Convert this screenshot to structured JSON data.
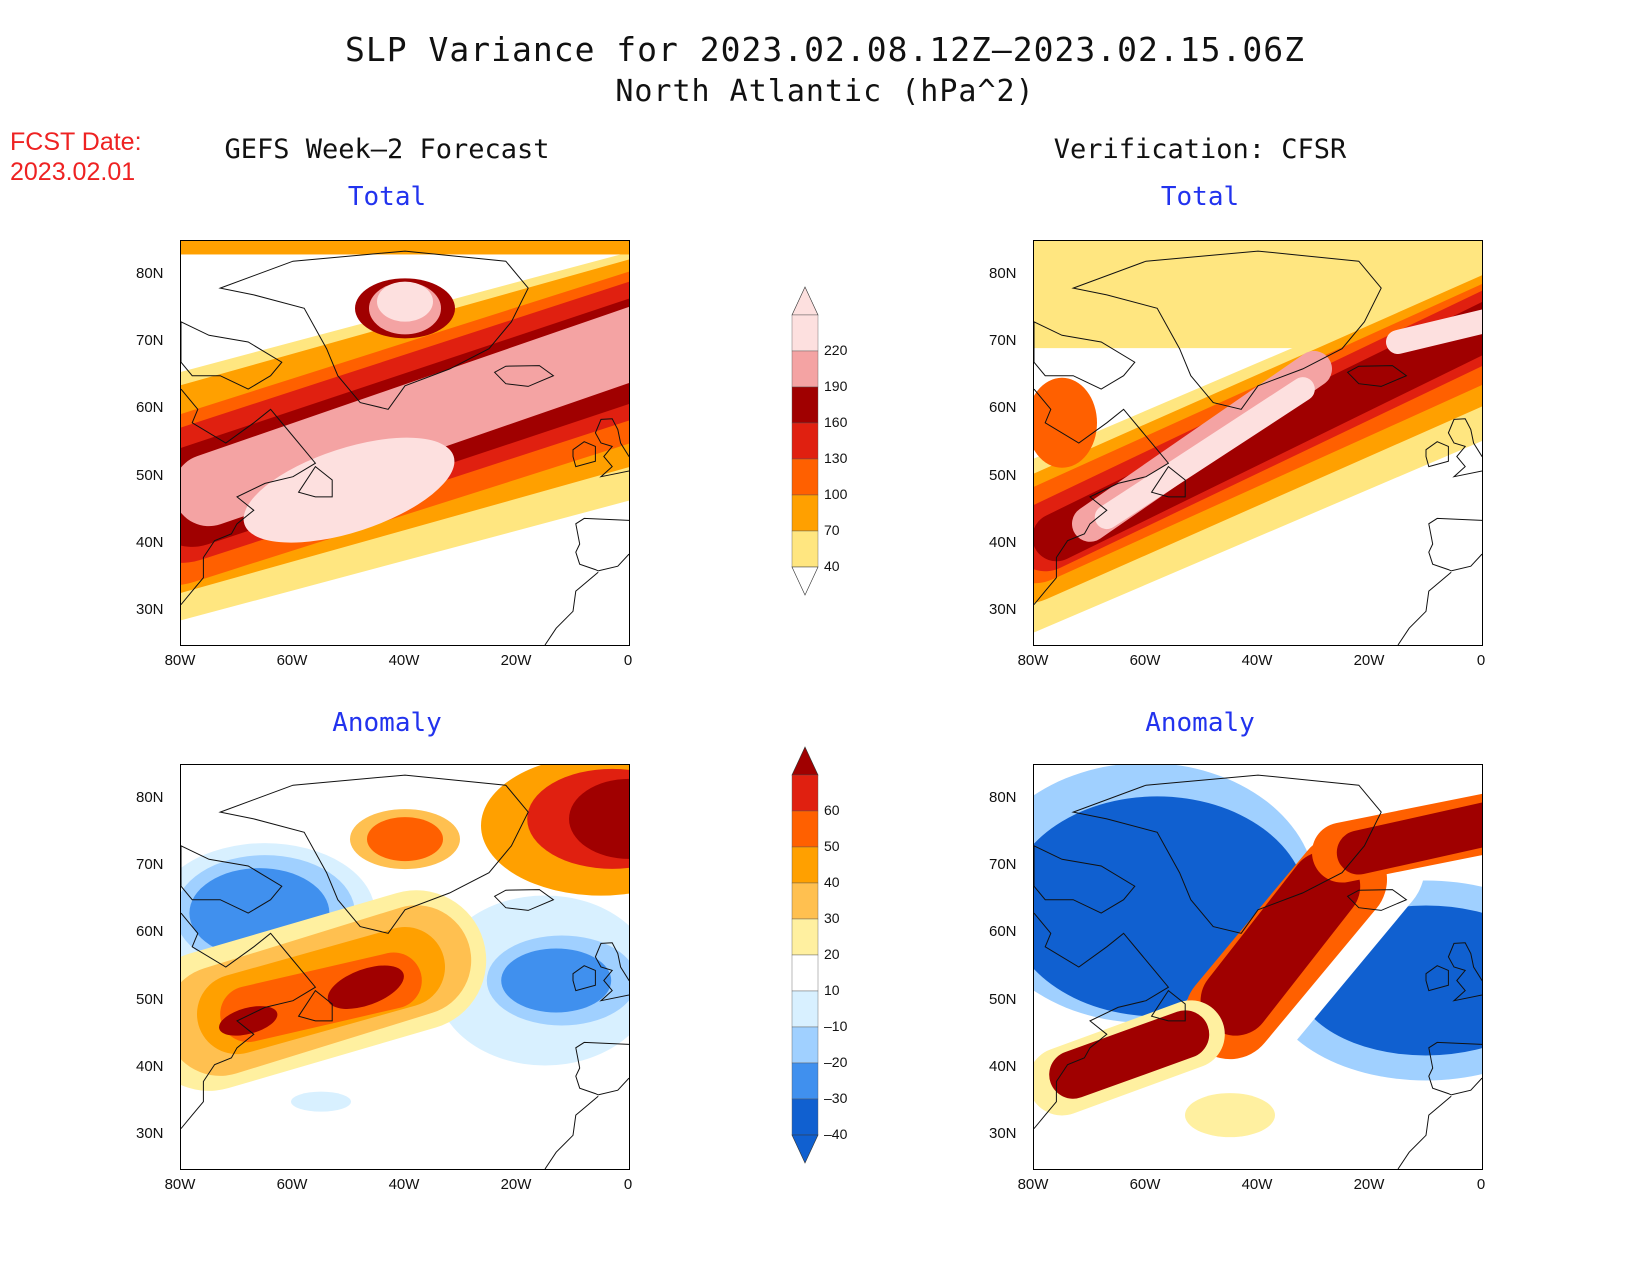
{
  "title": {
    "line1": "SLP Variance for 2023.02.08.12Z–2023.02.15.06Z",
    "line2": "North Atlantic (hPa^2)"
  },
  "fcst": {
    "label": "FCST Date:",
    "date": "2023.02.01"
  },
  "columns": {
    "left": "GEFS Week–2 Forecast",
    "right": "Verification: CFSR"
  },
  "panels": {
    "total": "Total",
    "anomaly": "Anomaly"
  },
  "axes": {
    "lat_ticks": [
      "80N",
      "70N",
      "60N",
      "50N",
      "40N",
      "30N"
    ],
    "lon_ticks": [
      "80W",
      "60W",
      "40W",
      "20W",
      "0"
    ],
    "lat_range": [
      25,
      85
    ],
    "lon_range": [
      -80,
      0
    ]
  },
  "colorbars": {
    "total": {
      "levels": [
        "220",
        "190",
        "160",
        "130",
        "100",
        "70",
        "40"
      ],
      "colors": [
        "#fde0df",
        "#f4a3a3",
        "#a00000",
        "#e02010",
        "#ff6000",
        "#ffa000",
        "#ffe680"
      ]
    },
    "anomaly": {
      "levels": [
        "60",
        "50",
        "40",
        "30",
        "20",
        "10",
        "–10",
        "–20",
        "–30",
        "–40"
      ],
      "colors": [
        "#a00000",
        "#e02010",
        "#ff6000",
        "#ffa000",
        "#ffc050",
        "#fff0a0",
        "#ffffff",
        "#d8f0ff",
        "#a0d0ff",
        "#4090ee",
        "#1060d0"
      ]
    }
  },
  "chart_data": {
    "type": "map-contour",
    "variable": "SLP Variance",
    "units": "hPa^2",
    "region": "North Atlantic",
    "period": "2023.02.08.12Z–2023.02.15.06Z",
    "panels": [
      {
        "name": "GEFS Week–2 Forecast Total",
        "field": "total",
        "maxima": [
          {
            "lon": -50,
            "lat": 48,
            "level": ">220"
          },
          {
            "lon": -40,
            "lat": 75,
            "level": ">220"
          }
        ]
      },
      {
        "name": "Verification: CFSR Total",
        "field": "total",
        "maxima": [
          {
            "lon": -48,
            "lat": 52,
            "level": ">220"
          },
          {
            "lon": -8,
            "lat": 72,
            "level": ">220"
          }
        ]
      },
      {
        "name": "GEFS Week–2 Forecast Anomaly",
        "field": "anomaly",
        "maxima": [
          {
            "lon": -47,
            "lat": 52,
            "level": ">50"
          },
          {
            "lon": -5,
            "lat": 77,
            "level": ">50"
          }
        ],
        "minima": [
          {
            "lon": -68,
            "lat": 63,
            "level": "<-30"
          },
          {
            "lon": -15,
            "lat": 53,
            "level": "<-30"
          }
        ]
      },
      {
        "name": "Verification: CFSR Anomaly",
        "field": "anomaly",
        "maxima": [
          {
            "lon": -40,
            "lat": 55,
            "level": ">60"
          },
          {
            "lon": -65,
            "lat": 42,
            "level": ">60"
          }
        ],
        "minima": [
          {
            "lon": -60,
            "lat": 70,
            "level": "<-30"
          },
          {
            "lon": -10,
            "lat": 52,
            "level": "<-30"
          }
        ]
      }
    ]
  }
}
